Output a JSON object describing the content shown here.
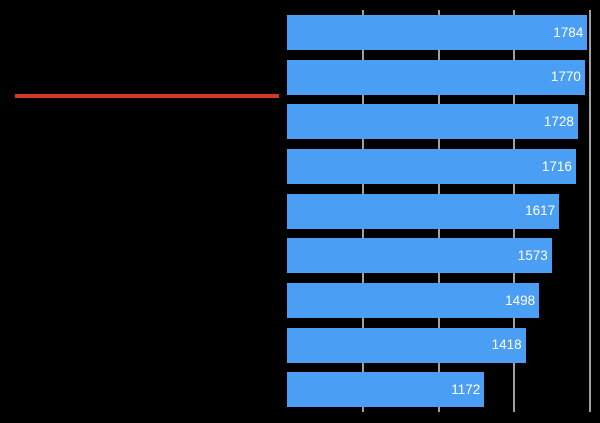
{
  "chart_data": {
    "type": "bar",
    "orientation": "horizontal",
    "title": "",
    "xlabel": "",
    "ylabel": "",
    "values": [
      1784,
      1770,
      1728,
      1716,
      1617,
      1573,
      1498,
      1418,
      1172
    ],
    "bar_value_labels": [
      "1784",
      "1770",
      "1728",
      "1716",
      "1617",
      "1573",
      "1498",
      "1418",
      "1172"
    ],
    "xlim": [
      0,
      1800
    ],
    "gridline_values": [
      450,
      900,
      1350,
      1800
    ],
    "grid": true,
    "category_labels_visible": false,
    "axis_tick_labels_visible": false,
    "annotations": [
      {
        "shape": "horizontal-line",
        "location": "left-margin-between-rows-2-and-3",
        "color": "#cf3a20"
      }
    ]
  },
  "colors": {
    "background": "#000000",
    "bar": "#4a9ef4",
    "bar_value_text": "#ffffff",
    "gridline": "#a0a0a0",
    "annotation_line": "#cf3a20"
  }
}
